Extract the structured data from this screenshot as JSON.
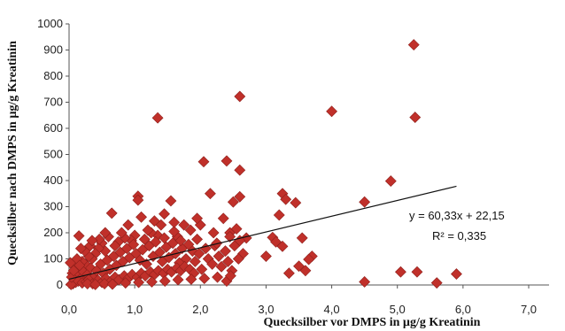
{
  "chart_data": {
    "type": "scatter",
    "xlabel": "Quecksilber vor DMPS in µg/g Kreatinin",
    "ylabel": "Quecksilber nach DMPS in µg/g Kreatinin",
    "xlim": [
      0,
      7
    ],
    "ylim": [
      0,
      1000
    ],
    "x_ticks": [
      "0,0",
      "1,0",
      "2,0",
      "3,0",
      "4,0",
      "5,0",
      "6,0",
      "7,0"
    ],
    "y_ticks": [
      "0",
      "100",
      "200",
      "300",
      "400",
      "500",
      "600",
      "700",
      "800",
      "900",
      "1000"
    ],
    "grid": false,
    "marker": "diamond",
    "marker_color": "#c0302a",
    "trendline": {
      "slope": 60.33,
      "intercept": 22.15,
      "x_range": [
        0,
        5.9
      ]
    },
    "annotations": [
      "y = 60,33x + 22,15",
      "R² = 0,335"
    ],
    "points": [
      [
        5.25,
        920
      ],
      [
        2.6,
        722
      ],
      [
        4.0,
        665
      ],
      [
        1.35,
        640
      ],
      [
        5.27,
        642
      ],
      [
        2.6,
        440
      ],
      [
        2.05,
        472
      ],
      [
        2.4,
        475
      ],
      [
        4.9,
        398
      ],
      [
        4.5,
        318
      ],
      [
        1.05,
        340
      ],
      [
        1.05,
        325
      ],
      [
        1.55,
        322
      ],
      [
        2.15,
        350
      ],
      [
        2.5,
        318
      ],
      [
        2.6,
        338
      ],
      [
        3.25,
        350
      ],
      [
        3.3,
        328
      ],
      [
        3.45,
        315
      ],
      [
        3.2,
        268
      ],
      [
        0.65,
        275
      ],
      [
        1.45,
        272
      ],
      [
        3.1,
        182
      ],
      [
        3.15,
        165
      ],
      [
        3.25,
        148
      ],
      [
        3.55,
        180
      ],
      [
        3.7,
        110
      ],
      [
        3.65,
        98
      ],
      [
        3.0,
        110
      ],
      [
        3.5,
        72
      ],
      [
        3.6,
        55
      ],
      [
        3.35,
        45
      ],
      [
        2.4,
        15
      ],
      [
        4.5,
        12
      ],
      [
        5.05,
        50
      ],
      [
        5.3,
        50
      ],
      [
        5.6,
        8
      ],
      [
        5.9,
        42
      ],
      [
        0.15,
        188
      ],
      [
        2.2,
        200
      ],
      [
        2.35,
        255
      ],
      [
        2.45,
        200
      ],
      [
        2.55,
        215
      ],
      [
        2.65,
        120
      ],
      [
        2.7,
        180
      ],
      [
        1.95,
        175
      ],
      [
        1.85,
        210
      ],
      [
        1.75,
        230
      ],
      [
        1.65,
        185
      ],
      [
        1.6,
        205
      ],
      [
        1.4,
        230
      ],
      [
        1.35,
        190
      ],
      [
        1.25,
        200
      ],
      [
        1.15,
        175
      ],
      [
        1.0,
        190
      ],
      [
        0.95,
        170
      ],
      [
        0.85,
        180
      ],
      [
        0.75,
        165
      ],
      [
        0.7,
        150
      ],
      [
        0.55,
        130
      ],
      [
        0.5,
        160
      ],
      [
        0.45,
        140
      ],
      [
        0.4,
        120
      ],
      [
        0.35,
        100
      ],
      [
        0.3,
        110
      ],
      [
        0.25,
        80
      ],
      [
        0.2,
        90
      ],
      [
        0.15,
        60
      ],
      [
        0.1,
        70
      ],
      [
        0.05,
        45
      ],
      [
        0.08,
        20
      ],
      [
        0.12,
        35
      ],
      [
        0.18,
        25
      ],
      [
        0.22,
        50
      ],
      [
        0.28,
        40
      ],
      [
        0.33,
        65
      ],
      [
        0.38,
        30
      ],
      [
        0.42,
        55
      ],
      [
        0.48,
        80
      ],
      [
        0.52,
        45
      ],
      [
        0.58,
        95
      ],
      [
        0.62,
        60
      ],
      [
        0.68,
        110
      ],
      [
        0.72,
        75
      ],
      [
        0.78,
        125
      ],
      [
        0.82,
        90
      ],
      [
        0.88,
        140
      ],
      [
        0.92,
        105
      ],
      [
        0.98,
        155
      ],
      [
        1.02,
        120
      ],
      [
        1.08,
        95
      ],
      [
        1.12,
        135
      ],
      [
        1.18,
        80
      ],
      [
        1.22,
        150
      ],
      [
        1.28,
        110
      ],
      [
        1.32,
        165
      ],
      [
        1.38,
        125
      ],
      [
        1.42,
        90
      ],
      [
        1.48,
        145
      ],
      [
        1.52,
        105
      ],
      [
        1.58,
        160
      ],
      [
        1.62,
        120
      ],
      [
        1.68,
        85
      ],
      [
        1.72,
        140
      ],
      [
        1.78,
        100
      ],
      [
        1.82,
        155
      ],
      [
        1.88,
        130
      ],
      [
        1.92,
        90
      ],
      [
        1.98,
        120
      ],
      [
        2.02,
        60
      ],
      [
        2.08,
        140
      ],
      [
        2.12,
        100
      ],
      [
        2.18,
        80
      ],
      [
        2.22,
        150
      ],
      [
        2.28,
        110
      ],
      [
        2.32,
        70
      ],
      [
        2.38,
        130
      ],
      [
        2.42,
        90
      ],
      [
        2.48,
        55
      ],
      [
        2.52,
        150
      ],
      [
        2.58,
        100
      ],
      [
        0.06,
        5
      ],
      [
        0.1,
        10
      ],
      [
        0.14,
        15
      ],
      [
        0.2,
        8
      ],
      [
        0.26,
        12
      ],
      [
        0.3,
        20
      ],
      [
        0.36,
        5
      ],
      [
        0.44,
        18
      ],
      [
        0.5,
        10
      ],
      [
        0.56,
        25
      ],
      [
        0.64,
        15
      ],
      [
        0.7,
        30
      ],
      [
        0.76,
        20
      ],
      [
        0.84,
        35
      ],
      [
        0.9,
        25
      ],
      [
        0.96,
        40
      ],
      [
        1.04,
        30
      ],
      [
        1.1,
        45
      ],
      [
        1.16,
        35
      ],
      [
        1.24,
        50
      ],
      [
        1.3,
        40
      ],
      [
        1.36,
        55
      ],
      [
        1.44,
        45
      ],
      [
        1.5,
        60
      ],
      [
        1.56,
        50
      ],
      [
        1.64,
        65
      ],
      [
        1.7,
        55
      ],
      [
        1.76,
        70
      ],
      [
        1.84,
        60
      ],
      [
        1.9,
        45
      ],
      [
        0.03,
        2
      ],
      [
        0.04,
        30
      ],
      [
        0.02,
        85
      ],
      [
        0.07,
        55
      ],
      [
        0.12,
        100
      ],
      [
        0.16,
        75
      ],
      [
        0.24,
        130
      ],
      [
        0.32,
        150
      ],
      [
        0.46,
        175
      ],
      [
        0.6,
        185
      ],
      [
        0.8,
        200
      ],
      [
        1.2,
        210
      ],
      [
        1.45,
        180
      ],
      [
        1.7,
        170
      ],
      [
        2.0,
        230
      ],
      [
        2.25,
        160
      ],
      [
        2.45,
        185
      ],
      [
        2.6,
        170
      ],
      [
        0.28,
        5
      ],
      [
        0.4,
        2
      ],
      [
        0.54,
        5
      ],
      [
        0.66,
        3
      ],
      [
        0.86,
        8
      ],
      [
        1.06,
        10
      ],
      [
        1.26,
        12
      ],
      [
        1.46,
        15
      ],
      [
        1.66,
        20
      ],
      [
        1.86,
        22
      ],
      [
        2.06,
        25
      ],
      [
        2.26,
        30
      ],
      [
        2.46,
        35
      ],
      [
        0.18,
        140
      ],
      [
        0.35,
        170
      ],
      [
        0.55,
        200
      ],
      [
        0.9,
        230
      ],
      [
        1.1,
        260
      ],
      [
        1.3,
        245
      ],
      [
        1.6,
        240
      ],
      [
        1.95,
        255
      ]
    ]
  }
}
